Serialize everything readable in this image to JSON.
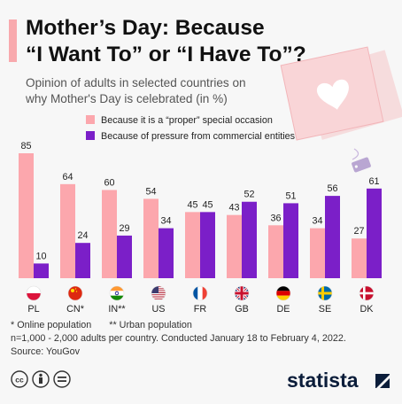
{
  "header": {
    "title_line1": "Mother’s Day: Because",
    "title_line2": "“I Want To” or “I Have To”?",
    "subtitle_line1": "Opinion of adults in selected countries on",
    "subtitle_line2": "why Mother's Day is celebrated (in %)"
  },
  "colors": {
    "accent": "#f8a9ad",
    "series_proper": "#fca7ad",
    "series_pressure": "#7b1fc8",
    "tag": "#b9a6d2"
  },
  "chart_data": {
    "type": "bar",
    "categories": [
      "PL",
      "CN*",
      "IN**",
      "US",
      "FR",
      "GB",
      "DE",
      "SE",
      "DK"
    ],
    "flags": [
      "poland-flag",
      "china-flag",
      "india-flag",
      "usa-flag",
      "france-flag",
      "uk-flag",
      "germany-flag",
      "sweden-flag",
      "denmark-flag"
    ],
    "series": [
      {
        "name": "Because it is a “proper” special occasion",
        "values": [
          85,
          64,
          60,
          54,
          45,
          43,
          36,
          34,
          27
        ]
      },
      {
        "name": "Because of pressure from commercial entities",
        "values": [
          10,
          24,
          29,
          34,
          45,
          52,
          51,
          56,
          61
        ]
      }
    ],
    "value_labels": [
      [
        "85",
        "64",
        "60",
        "54",
        "45",
        "43",
        "36",
        "34",
        "27"
      ],
      [
        "10",
        "24",
        "29",
        "34",
        "45",
        "52",
        "51",
        "56",
        "61"
      ]
    ],
    "ylim": [
      0,
      85
    ],
    "grid": false,
    "legend": "top-right"
  },
  "footer": {
    "note_online": "* Online population",
    "note_urban": "** Urban population",
    "methodology": "n=1,000 - 2,000 adults per country. Conducted January 18 to February 4, 2022.",
    "source": "Source: YouGov",
    "brand": "statista",
    "license_icons": [
      "cc-icon",
      "person-attribution-icon",
      "equals-noderivs-icon"
    ]
  }
}
